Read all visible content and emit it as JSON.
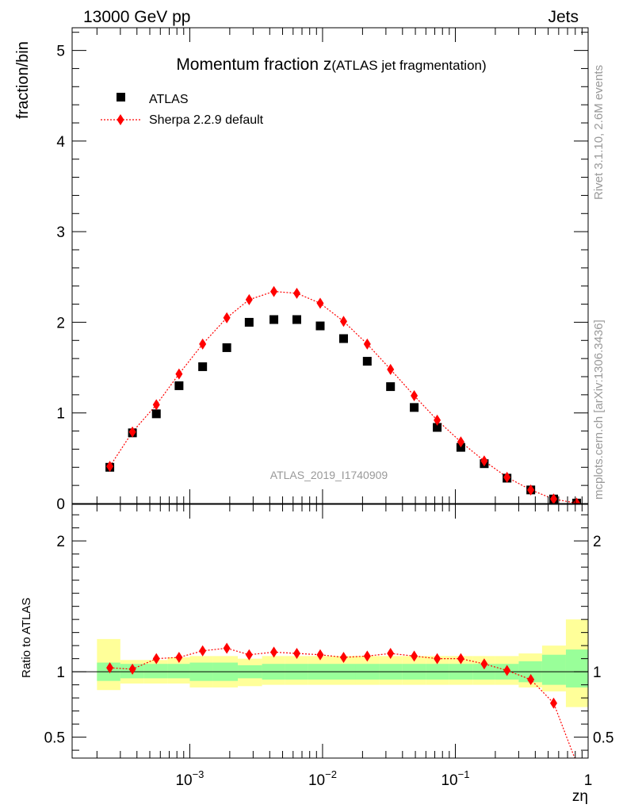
{
  "header": {
    "energy_label": "13000 GeV pp",
    "process_label": "Jets",
    "title_main": "Momentum fraction z",
    "title_sub": "(ATLAS jet fragmentation)",
    "analysis_id": "ATLAS_2019_I1740909",
    "side_rivet": "Rivet 3.1.10,  2.6M events",
    "side_source": "mcplots.cern.ch [arXiv:1306.3436]"
  },
  "colors": {
    "data_marker": "#000000",
    "mc_line": "#ff0000",
    "band_inner": "#99ff99",
    "band_outer": "#ffff99",
    "watermark": "#999999"
  },
  "chart_data": {
    "type": "scatter",
    "xscale": "log",
    "xlim": [
      0.00013,
      1.0
    ],
    "xlabel": "zη",
    "x_ticks": [
      {
        "value": 0.001,
        "base": "10",
        "exp": "−3"
      },
      {
        "value": 0.01,
        "base": "10",
        "exp": "−2"
      },
      {
        "value": 0.1,
        "base": "10",
        "exp": "−1"
      },
      {
        "value": 1.0,
        "base": "1",
        "exp": ""
      }
    ],
    "main": {
      "ylabel": "fraction/bin",
      "ylim": [
        0,
        5.25
      ],
      "y_ticks": [
        "0",
        "1",
        "2",
        "3",
        "4",
        "5"
      ],
      "y_tick_values": [
        0,
        1,
        2,
        3,
        4,
        5
      ]
    },
    "ratio": {
      "ylabel": "Ratio to ATLAS",
      "ylim": [
        0.34,
        2.28
      ],
      "y_ticks": [
        "0.5",
        "1",
        "2"
      ],
      "y_tick_values": [
        0.5,
        1,
        2
      ]
    },
    "legend": {
      "position": "top-left",
      "entries": [
        "ATLAS",
        "Sherpa 2.2.9 default"
      ]
    },
    "bin_edges": [
      0.0002,
      0.0003,
      0.00045,
      0.00068,
      0.001,
      0.0015,
      0.0023,
      0.0035,
      0.0052,
      0.0078,
      0.0118,
      0.0177,
      0.0266,
      0.04,
      0.06,
      0.09,
      0.135,
      0.2,
      0.3,
      0.45,
      0.68,
      1.0
    ],
    "x": [
      0.00025,
      0.00037,
      0.00056,
      0.00083,
      0.00125,
      0.0019,
      0.0028,
      0.0043,
      0.0064,
      0.0096,
      0.0144,
      0.0217,
      0.0325,
      0.049,
      0.073,
      0.11,
      0.165,
      0.245,
      0.37,
      0.55,
      0.82
    ],
    "series": [
      {
        "name": "ATLAS",
        "y": [
          0.4,
          0.78,
          0.99,
          1.3,
          1.51,
          1.72,
          2.0,
          2.03,
          2.03,
          1.96,
          1.82,
          1.57,
          1.29,
          1.06,
          0.84,
          0.62,
          0.44,
          0.28,
          0.15,
          0.05,
          0.005
        ]
      },
      {
        "name": "Sherpa 2.2.9 default",
        "y": [
          0.41,
          0.79,
          1.09,
          1.43,
          1.76,
          2.05,
          2.25,
          2.34,
          2.32,
          2.21,
          2.01,
          1.76,
          1.48,
          1.19,
          0.92,
          0.68,
          0.47,
          0.29,
          0.15,
          0.05,
          0.004
        ],
        "ratio": [
          1.03,
          1.02,
          1.1,
          1.11,
          1.16,
          1.18,
          1.13,
          1.15,
          1.14,
          1.13,
          1.11,
          1.12,
          1.14,
          1.12,
          1.1,
          1.1,
          1.06,
          1.01,
          0.94,
          0.76,
          0.3
        ]
      }
    ],
    "band_inner": [
      [
        0.93,
        1.07
      ],
      [
        0.95,
        1.06
      ],
      [
        0.95,
        1.06
      ],
      [
        0.95,
        1.06
      ],
      [
        0.93,
        1.07
      ],
      [
        0.93,
        1.07
      ],
      [
        0.95,
        1.05
      ],
      [
        0.94,
        1.06
      ],
      [
        0.94,
        1.06
      ],
      [
        0.94,
        1.06
      ],
      [
        0.94,
        1.06
      ],
      [
        0.94,
        1.06
      ],
      [
        0.94,
        1.06
      ],
      [
        0.94,
        1.06
      ],
      [
        0.94,
        1.06
      ],
      [
        0.94,
        1.06
      ],
      [
        0.94,
        1.06
      ],
      [
        0.94,
        1.06
      ],
      [
        0.92,
        1.08
      ],
      [
        0.9,
        1.13
      ],
      [
        0.88,
        1.17
      ]
    ],
    "band_outer": [
      [
        0.86,
        1.25
      ],
      [
        0.91,
        1.09
      ],
      [
        0.91,
        1.09
      ],
      [
        0.91,
        1.11
      ],
      [
        0.88,
        1.12
      ],
      [
        0.88,
        1.12
      ],
      [
        0.89,
        1.1
      ],
      [
        0.9,
        1.12
      ],
      [
        0.9,
        1.12
      ],
      [
        0.9,
        1.12
      ],
      [
        0.9,
        1.12
      ],
      [
        0.9,
        1.12
      ],
      [
        0.9,
        1.12
      ],
      [
        0.9,
        1.12
      ],
      [
        0.9,
        1.12
      ],
      [
        0.9,
        1.12
      ],
      [
        0.9,
        1.12
      ],
      [
        0.9,
        1.12
      ],
      [
        0.88,
        1.14
      ],
      [
        0.85,
        1.2
      ],
      [
        0.73,
        1.4
      ]
    ]
  }
}
